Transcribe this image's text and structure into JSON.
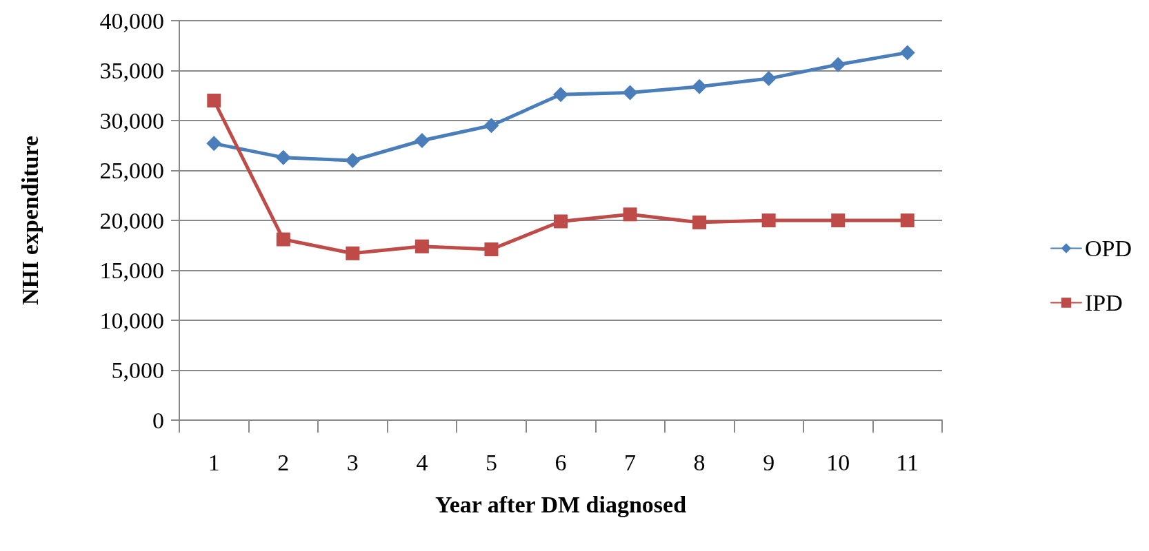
{
  "chart_data": {
    "type": "line",
    "xlabel": "Year after DM diagnosed",
    "ylabel": "NHI expenditure",
    "categories": [
      "1",
      "2",
      "3",
      "4",
      "5",
      "6",
      "7",
      "8",
      "9",
      "10",
      "11"
    ],
    "series": [
      {
        "name": "OPD",
        "color": "#4a7ebb",
        "marker": "diamond",
        "values": [
          27700,
          26300,
          26000,
          28000,
          29500,
          32600,
          32800,
          33400,
          34200,
          35600,
          36800
        ]
      },
      {
        "name": "IPD",
        "color": "#be4b48",
        "marker": "square",
        "values": [
          32000,
          18100,
          16700,
          17400,
          17100,
          19900,
          20600,
          19800,
          20000,
          20000,
          20000
        ]
      }
    ],
    "ylim": [
      0,
      40000
    ],
    "yticks": [
      0,
      {
        "value": 5000,
        "label": "5,000"
      },
      {
        "value": 10000,
        "label": "10,000"
      },
      {
        "value": 15000,
        "label": "15,000"
      },
      {
        "value": 20000,
        "label": "20,000"
      },
      {
        "value": 25000,
        "label": "25,000"
      },
      {
        "value": 30000,
        "label": "30,000"
      },
      {
        "value": 35000,
        "label": "35,000"
      },
      {
        "value": 40000,
        "label": "40,000"
      }
    ],
    "grid": "y",
    "legend": "right",
    "line_style": "solid"
  }
}
